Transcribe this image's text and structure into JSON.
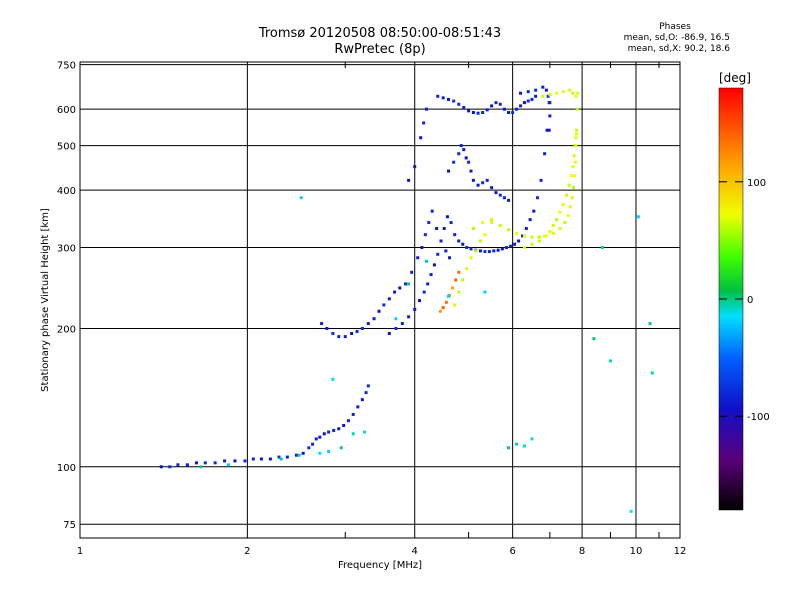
{
  "header": {
    "title_line1": "Tromsø 20120508 08:50:00-08:51:43",
    "title_line2": "RwPretec (8p)"
  },
  "stats": {
    "heading": "Phases",
    "line_o": "mean, sd,O: -86.9, 16.5",
    "line_x": "mean, sd,X: 90.2, 18.6"
  },
  "chart_data": {
    "type": "scatter",
    "title": "Tromsø 20120508 08:50:00-08:51:43",
    "subtitle": "RwPretec (8p)",
    "xlabel": "Frequency [MHz]",
    "ylabel": "Stationary phase Virtual Height [km]",
    "xscale": "log",
    "yscale": "log",
    "xlim": [
      1,
      12
    ],
    "ylim": [
      70,
      760
    ],
    "xticks": [
      1,
      2,
      4,
      6,
      8,
      10,
      12
    ],
    "xtick_labels": [
      "1",
      "2",
      "4",
      "6",
      "8",
      "10",
      "12"
    ],
    "yticks": [
      75,
      100,
      200,
      300,
      400,
      500,
      600,
      750
    ],
    "ytick_labels": [
      "75",
      "100",
      "200",
      "300",
      "400",
      "500",
      "600",
      "750"
    ],
    "grid": true,
    "colorbar": {
      "label": "[deg]",
      "range": [
        -180,
        180
      ],
      "ticks": [
        -100,
        0,
        100
      ],
      "tick_labels": [
        "-100",
        "0",
        "100"
      ],
      "colormap": "rainbow"
    },
    "series": [
      {
        "color_phase": -90,
        "x": [
          1.4,
          1.45,
          1.5,
          1.56,
          1.62,
          1.68,
          1.75,
          1.82,
          1.9,
          1.98,
          2.05,
          2.12,
          2.2,
          2.28,
          2.36,
          2.45,
          2.52,
          2.58,
          2.62,
          2.66,
          2.7,
          2.75,
          2.8,
          2.86,
          2.92,
          2.98,
          3.04,
          3.1,
          3.16,
          3.22,
          3.27,
          3.3,
          2.72,
          2.78,
          2.85,
          2.92,
          3.0,
          3.08,
          3.15,
          3.22,
          3.3,
          3.38,
          3.45,
          3.52,
          3.6,
          3.68,
          3.76,
          3.85,
          3.95,
          4.05,
          4.12,
          4.18,
          4.24,
          4.3,
          4.38,
          4.46,
          4.55,
          4.62,
          3.6,
          3.7,
          3.8,
          3.9,
          4.0,
          4.08,
          4.16,
          4.22,
          4.28,
          4.34,
          4.4,
          4.46,
          4.52,
          4.58,
          4.65,
          4.72,
          4.8,
          4.88,
          4.96,
          5.05,
          5.15,
          5.25,
          5.35,
          5.45,
          5.55,
          5.65,
          5.75,
          5.85,
          5.95,
          6.05,
          6.15,
          6.25,
          6.35,
          6.45,
          6.55,
          6.65,
          6.75,
          6.85,
          6.92,
          6.98,
          4.4,
          4.5,
          4.6,
          4.7,
          4.8,
          4.9,
          5.0,
          5.1,
          5.2,
          5.3,
          5.4,
          5.5,
          5.6,
          5.7,
          5.8,
          5.9,
          6.0,
          6.1,
          6.2,
          6.3,
          6.4,
          6.5,
          6.6,
          4.6,
          4.7,
          4.8,
          4.85,
          4.9,
          4.95,
          5.0,
          5.05,
          5.1,
          5.2,
          5.3,
          5.4,
          5.5,
          5.6,
          5.7,
          5.8,
          5.9,
          6.2,
          6.4,
          6.6,
          6.8,
          6.9,
          6.95,
          7.0,
          7.0,
          6.98,
          4.1,
          4.15,
          4.2,
          4.0,
          3.9
        ],
        "y": [
          100,
          100,
          101,
          101,
          102,
          102,
          102,
          103,
          103,
          103,
          104,
          104,
          104,
          105,
          105,
          106,
          107,
          110,
          112,
          115,
          116,
          118,
          119,
          120,
          121,
          123,
          126,
          130,
          135,
          140,
          145,
          150,
          205,
          200,
          195,
          192,
          192,
          195,
          197,
          200,
          205,
          210,
          218,
          225,
          232,
          240,
          245,
          250,
          265,
          285,
          300,
          320,
          340,
          360,
          330,
          310,
          295,
          285,
          195,
          200,
          205,
          212,
          220,
          230,
          240,
          250,
          262,
          275,
          290,
          310,
          330,
          350,
          340,
          320,
          310,
          305,
          300,
          298,
          296,
          295,
          294,
          294,
          295,
          296,
          298,
          300,
          302,
          305,
          310,
          318,
          330,
          345,
          360,
          385,
          420,
          480,
          540,
          620,
          640,
          635,
          630,
          625,
          615,
          605,
          595,
          590,
          588,
          590,
          598,
          610,
          620,
          615,
          600,
          590,
          590,
          600,
          610,
          620,
          625,
          630,
          640,
          440,
          460,
          480,
          500,
          490,
          470,
          460,
          440,
          420,
          410,
          415,
          420,
          405,
          395,
          390,
          385,
          380,
          650,
          655,
          660,
          670,
          660,
          640,
          620,
          580,
          540,
          520,
          560,
          600,
          450,
          420
        ]
      },
      {
        "color_phase": 90,
        "x": [
          5.1,
          5.3,
          5.5,
          5.7,
          5.9,
          6.1,
          6.3,
          6.5,
          6.7,
          6.9,
          7.1,
          7.3,
          7.45,
          7.55,
          7.62,
          7.68,
          7.72,
          7.75,
          7.78,
          7.8,
          7.82,
          7.84,
          7.85,
          6.3,
          6.5,
          6.7,
          6.85,
          7.0,
          7.1,
          7.2,
          7.3,
          7.4,
          7.5,
          7.58,
          7.65,
          7.7,
          7.74,
          7.77,
          7.8,
          7.82,
          4.72,
          4.8,
          4.88,
          4.96,
          5.05,
          5.15,
          5.25,
          5.35,
          5.5,
          6.8,
          7.0,
          7.2,
          7.4,
          7.6,
          7.7,
          7.8
        ],
        "y": [
          330,
          340,
          345,
          335,
          328,
          322,
          318,
          316,
          316,
          318,
          322,
          330,
          340,
          352,
          368,
          385,
          405,
          430,
          460,
          500,
          540,
          600,
          650,
          300,
          305,
          310,
          318,
          325,
          335,
          345,
          358,
          372,
          390,
          410,
          430,
          450,
          475,
          500,
          520,
          530,
          225,
          240,
          255,
          270,
          285,
          295,
          310,
          320,
          340,
          640,
          645,
          650,
          655,
          660,
          650,
          640
        ]
      },
      {
        "color_phase": 150,
        "x": [
          4.45,
          4.5,
          4.56,
          4.62,
          4.68,
          4.74,
          4.8
        ],
        "y": [
          218,
          222,
          228,
          236,
          245,
          255,
          265
        ]
      },
      {
        "color_phase": -10,
        "x": [
          1.85,
          2.3,
          2.48,
          2.7,
          2.8,
          2.95,
          3.1,
          3.25,
          3.7,
          3.9,
          4.2,
          4.6,
          5.35,
          5.9,
          6.1,
          6.3,
          6.5,
          8.4,
          8.7,
          9.0,
          9.8,
          10.1,
          10.6,
          10.7,
          2.85,
          2.5,
          1.65
        ],
        "y": [
          101,
          104,
          106,
          107,
          108,
          110,
          118,
          119,
          210,
          250,
          280,
          235,
          240,
          110,
          112,
          111,
          115,
          190,
          300,
          170,
          80,
          350,
          205,
          160,
          155,
          385,
          100
        ]
      }
    ]
  }
}
